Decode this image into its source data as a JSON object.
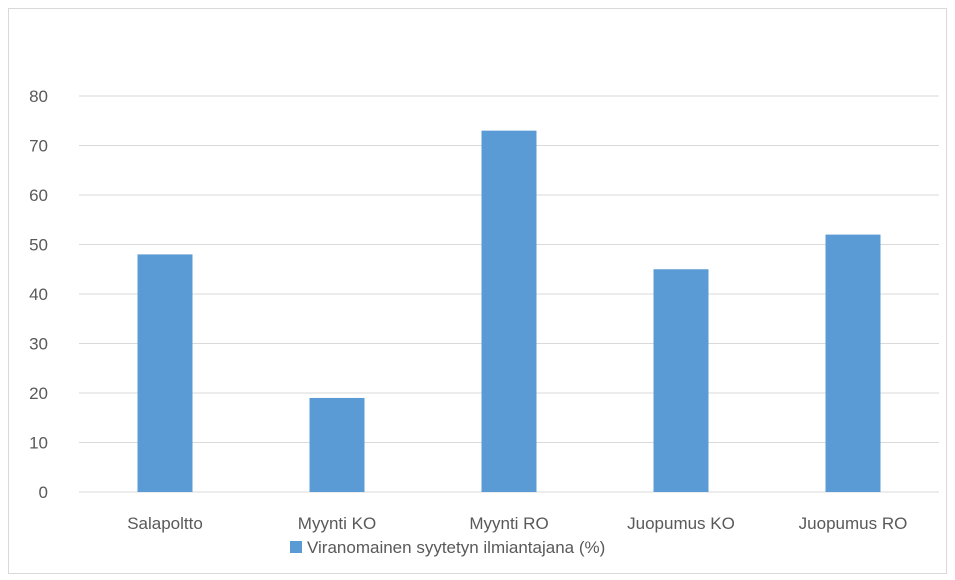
{
  "chart_data": {
    "type": "bar",
    "categories": [
      "Salapoltto",
      "Myynti KO",
      "Myynti RO",
      "Juopumus KO",
      "Juopumus RO"
    ],
    "series": [
      {
        "name": "Viranomainen syytetyn ilmiantajana (%)",
        "values": [
          48,
          19,
          73,
          45,
          52
        ],
        "color": "#5b9bd5"
      }
    ],
    "ylim": [
      0,
      80
    ],
    "yticks": [
      0,
      10,
      20,
      30,
      40,
      50,
      60,
      70,
      80
    ],
    "grid": true,
    "legend_position": "bottom",
    "gridline_color": "#d9d9d9"
  }
}
